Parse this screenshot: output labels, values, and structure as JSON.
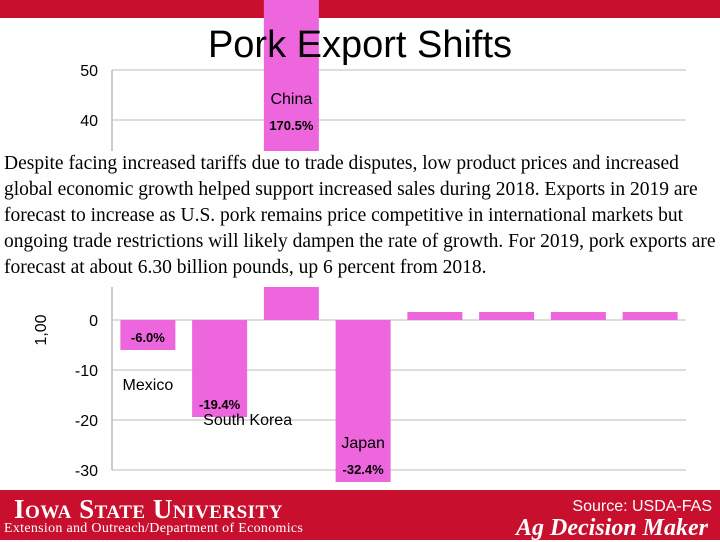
{
  "title": "Pork Export Shifts",
  "body_text": "Despite facing increased tariffs due to trade disputes, low product prices and increased global economic growth helped support increased sales during 2018.  Exports in 2019 are forecast to increase as U.S. pork remains price competitive in international markets but ongoing trade restrictions will likely dampen the rate of growth.  For 2019, pork exports are forecast at about 6.30 billion pounds, up 6 percent from 2018.",
  "footer": {
    "university": "Iowa State University",
    "department": "Extension and Outreach/Department of Economics",
    "source": "Source: USDA-FAS",
    "brand": "Ag Decision Maker"
  },
  "colors": {
    "bar": "#ee66dd",
    "accent": "#c8102e"
  },
  "chart_data": {
    "type": "bar",
    "ylabel": "1,00",
    "ylim": [
      -30,
      50
    ],
    "yticks": [
      50,
      40,
      0,
      -10,
      -20,
      -30
    ],
    "categories": [
      "Mexico",
      "South Korea",
      "China",
      "Japan",
      "",
      "",
      "",
      ""
    ],
    "values": [
      -6.0,
      -19.4,
      170.5,
      -32.4,
      null,
      null,
      null,
      null
    ],
    "data_labels": [
      "-6.0%",
      "-19.4%",
      "170.5%",
      "-32.4%",
      "",
      "",
      "",
      ""
    ]
  }
}
